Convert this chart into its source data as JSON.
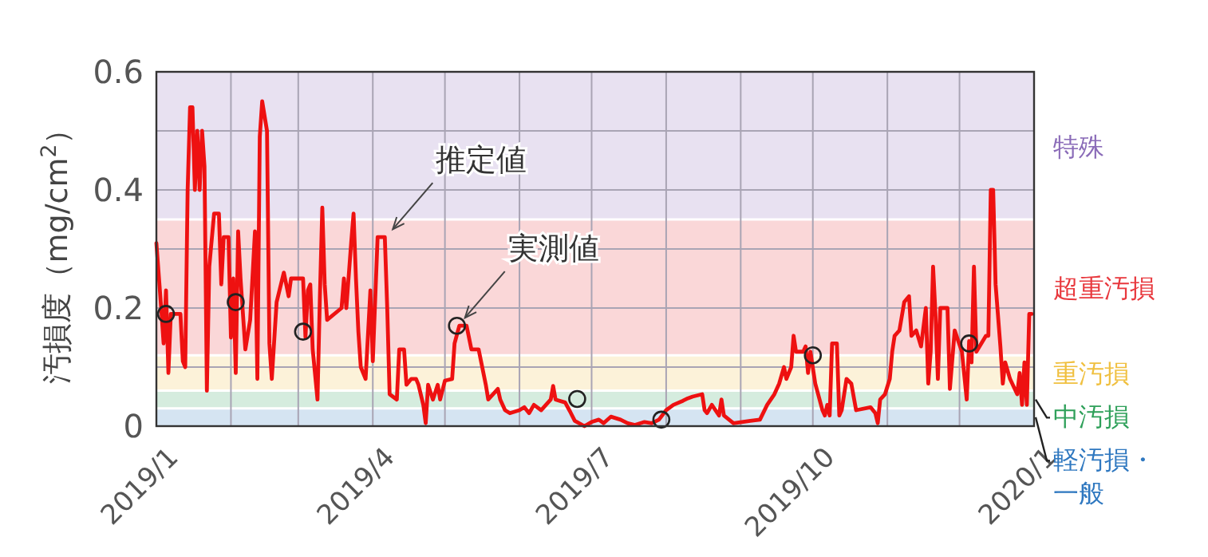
{
  "chart_data": {
    "type": "line",
    "ylabel": "汚損度（mg/cm$^{2}$）",
    "xlim": [
      "2019-01",
      "2020-01"
    ],
    "xticks": [
      {
        "value": "2019-01",
        "label": "2019/1"
      },
      {
        "value": "2019-02",
        "label": null
      },
      {
        "value": "2019-03",
        "label": null
      },
      {
        "value": "2019-04",
        "label": "2019/4"
      },
      {
        "value": "2019-05",
        "label": null
      },
      {
        "value": "2019-06",
        "label": null
      },
      {
        "value": "2019-07",
        "label": "2019/7"
      },
      {
        "value": "2019-08",
        "label": null
      },
      {
        "value": "2019-09",
        "label": null
      },
      {
        "value": "2019-10",
        "label": "2019/10"
      },
      {
        "value": "2019-11",
        "label": null
      },
      {
        "value": "2019-12",
        "label": null
      },
      {
        "value": "2020-01",
        "label": "2020/1"
      }
    ],
    "ylim": [
      0,
      0.6
    ],
    "yticks": [
      0,
      {
        "value": 0.1,
        "label": null
      },
      0.2,
      {
        "value": 0.3,
        "label": null
      },
      0.4,
      {
        "value": 0.5,
        "label": null
      },
      0.6
    ],
    "grid": true,
    "bands": [
      {
        "axis": "y",
        "from": 0.35,
        "to": 0.6,
        "label": "特殊",
        "color": "#8a6bb8"
      },
      {
        "axis": "y",
        "from": 0.12,
        "to": 0.35,
        "label": "超重汚損",
        "color": "#e8383d"
      },
      {
        "axis": "y",
        "from": 0.06,
        "to": 0.12,
        "label": "重汚損",
        "color": "#f0c040"
      },
      {
        "axis": "y",
        "from": 0.03,
        "to": 0.06,
        "label": "中汚損",
        "color": "#2fa05a"
      },
      {
        "axis": "y",
        "from": 0,
        "to": 0.03,
        "label": "軽汚損・一般",
        "color": "#2f78c0"
      }
    ],
    "annotations": [
      {
        "text": "推定値",
        "x": "2019-04-06",
        "y": 0.32
      },
      {
        "text": "実測値",
        "x": "2019-05-06",
        "y": 0.17
      }
    ],
    "series": [
      {
        "type": "line",
        "color": "#ee1111",
        "marker": "none",
        "x": [
          "2019-01-01",
          "2019-01-03",
          "2019-01-04",
          "2019-01-05",
          "2019-01-06",
          "2019-01-07",
          "2019-01-11",
          "2019-01-12",
          "2019-01-13",
          "2019-01-14",
          "2019-01-15",
          "2019-01-16",
          "2019-01-17",
          "2019-01-18",
          "2019-01-19",
          "2019-01-20",
          "2019-01-21",
          "2019-01-22",
          "2019-01-23",
          "2019-01-25",
          "2019-01-27",
          "2019-01-28",
          "2019-01-29",
          "2019-01-31",
          "2019-02-01",
          "2019-02-02",
          "2019-02-03",
          "2019-02-04",
          "2019-02-05",
          "2019-02-07",
          "2019-02-09",
          "2019-02-11",
          "2019-02-12",
          "2019-02-13",
          "2019-02-14",
          "2019-02-16",
          "2019-02-17",
          "2019-02-18",
          "2019-02-20",
          "2019-02-23",
          "2019-02-25",
          "2019-02-26",
          "2019-03-03",
          "2019-03-04",
          "2019-03-05",
          "2019-03-06",
          "2019-03-07",
          "2019-03-09",
          "2019-03-10",
          "2019-03-11",
          "2019-03-12",
          "2019-03-13",
          "2019-03-19",
          "2019-03-20",
          "2019-03-21",
          "2019-03-23",
          "2019-03-24",
          "2019-03-25",
          "2019-03-26",
          "2019-03-27",
          "2019-03-29",
          "2019-03-31",
          "2019-04-01",
          "2019-04-03",
          "2019-04-06",
          "2019-04-07",
          "2019-04-08",
          "2019-04-11",
          "2019-04-12",
          "2019-04-14",
          "2019-04-15",
          "2019-04-17",
          "2019-04-19",
          "2019-04-20",
          "2019-04-22",
          "2019-04-23",
          "2019-04-24",
          "2019-04-26",
          "2019-04-28",
          "2019-04-29",
          "2019-05-01",
          "2019-05-04",
          "2019-05-05",
          "2019-05-07",
          "2019-05-10",
          "2019-05-12",
          "2019-05-15",
          "2019-05-16",
          "2019-05-18",
          "2019-05-19",
          "2019-05-23",
          "2019-05-24",
          "2019-05-26",
          "2019-05-28",
          "2019-06-01",
          "2019-06-03",
          "2019-06-05",
          "2019-06-07",
          "2019-06-10",
          "2019-06-12",
          "2019-06-14",
          "2019-06-15",
          "2019-06-16",
          "2019-06-20",
          "2019-06-22",
          "2019-06-24",
          "2019-06-28",
          "2019-07-01",
          "2019-07-04",
          "2019-07-06",
          "2019-07-09",
          "2019-07-13",
          "2019-07-16",
          "2019-07-19",
          "2019-07-23",
          "2019-07-26",
          "2019-07-29",
          "2019-08-01",
          "2019-08-04",
          "2019-08-08",
          "2019-08-10",
          "2019-08-12",
          "2019-08-16",
          "2019-08-17",
          "2019-08-18",
          "2019-08-20",
          "2019-08-23",
          "2019-08-24",
          "2019-08-25",
          "2019-08-29",
          "2019-09-05",
          "2019-09-09",
          "2019-09-12",
          "2019-09-15",
          "2019-09-17",
          "2019-09-19",
          "2019-09-20",
          "2019-09-22",
          "2019-09-23",
          "2019-09-24",
          "2019-09-27",
          "2019-09-28",
          "2019-09-29",
          "2019-09-30",
          "2019-10-02",
          "2019-10-05",
          "2019-10-06",
          "2019-10-07",
          "2019-10-08",
          "2019-10-09",
          "2019-10-11",
          "2019-10-12",
          "2019-10-13",
          "2019-10-15",
          "2019-10-17",
          "2019-10-19",
          "2019-10-25",
          "2019-10-27",
          "2019-10-28",
          "2019-10-29",
          "2019-10-31",
          "2019-11-02",
          "2019-11-03",
          "2019-11-04",
          "2019-11-06",
          "2019-11-08",
          "2019-11-10",
          "2019-11-11",
          "2019-11-13",
          "2019-11-15",
          "2019-11-17",
          "2019-11-18",
          "2019-11-19",
          "2019-11-20",
          "2019-11-21",
          "2019-11-22",
          "2019-11-23",
          "2019-11-26",
          "2019-11-27",
          "2019-11-29",
          "2019-12-02",
          "2019-12-04",
          "2019-12-05",
          "2019-12-06",
          "2019-12-07",
          "2019-12-08",
          "2019-12-12",
          "2019-12-13",
          "2019-12-14",
          "2019-12-15",
          "2019-12-16",
          "2019-12-18",
          "2019-12-19",
          "2019-12-20",
          "2019-12-22",
          "2019-12-25",
          "2019-12-26",
          "2019-12-27",
          "2019-12-28",
          "2019-12-29",
          "2019-12-30",
          "2019-12-31"
        ],
        "values": [
          0.31,
          0.2,
          0.14,
          0.23,
          0.09,
          0.19,
          0.19,
          0.11,
          0.1,
          0.4,
          0.54,
          0.54,
          0.4,
          0.5,
          0.4,
          0.5,
          0.44,
          0.06,
          0.27,
          0.36,
          0.36,
          0.24,
          0.32,
          0.32,
          0.15,
          0.25,
          0.09,
          0.33,
          0.25,
          0.13,
          0.18,
          0.33,
          0.08,
          0.49,
          0.55,
          0.5,
          0.14,
          0.08,
          0.21,
          0.26,
          0.22,
          0.25,
          0.25,
          0.15,
          0.23,
          0.24,
          0.13,
          0.045,
          0.22,
          0.37,
          0.24,
          0.18,
          0.2,
          0.25,
          0.2,
          0.31,
          0.36,
          0.25,
          0.16,
          0.1,
          0.08,
          0.23,
          0.11,
          0.32,
          0.32,
          0.2,
          0.054,
          0.045,
          0.13,
          0.13,
          0.07,
          0.08,
          0.08,
          0.07,
          0.036,
          0.005,
          0.07,
          0.045,
          0.07,
          0.045,
          0.077,
          0.08,
          0.14,
          0.17,
          0.17,
          0.13,
          0.13,
          0.11,
          0.07,
          0.045,
          0.063,
          0.045,
          0.027,
          0.022,
          0.027,
          0.032,
          0.022,
          0.036,
          0.027,
          0.036,
          0.045,
          0.068,
          0.045,
          0.04,
          0.025,
          0.009,
          0,
          0.007,
          0.011,
          0.005,
          0.016,
          0.011,
          0.005,
          0.002,
          0.007,
          0.005,
          0.011,
          0.027,
          0.036,
          0.043,
          0.047,
          0.05,
          0.054,
          0.027,
          0.022,
          0.036,
          0.018,
          0.045,
          0.018,
          0.005,
          0.009,
          0.011,
          0.036,
          0.054,
          0.072,
          0.1,
          0.08,
          0.1,
          0.153,
          0.126,
          0.126,
          0.135,
          0.09,
          0.126,
          0.072,
          0.027,
          0.018,
          0.036,
          0.018,
          0.14,
          0.14,
          0.018,
          0.027,
          0.08,
          0.072,
          0.027,
          0.032,
          0.022,
          0.005,
          0.045,
          0.054,
          0.08,
          0.126,
          0.153,
          0.162,
          0.21,
          0.22,
          0.153,
          0.162,
          0.135,
          0.2,
          0.072,
          0.126,
          0.27,
          0.19,
          0.08,
          0.2,
          0.2,
          0.063,
          0.162,
          0.126,
          0.045,
          0.144,
          0.108,
          0.27,
          0.126,
          0.153,
          0.153,
          0.4,
          0.4,
          0.24,
          0.135,
          0.072,
          0.108,
          0.08,
          0.054,
          0.09,
          0.036,
          0.108,
          0.036,
          0.19,
          0.19
        ]
      },
      {
        "type": "scatter",
        "color": "#222222",
        "marker": "circle",
        "x": [
          "2019-01-05",
          "2019-02-03",
          "2019-03-03",
          "2019-05-06",
          "2019-06-25",
          "2019-07-30",
          "2019-10-01",
          "2019-12-05"
        ],
        "values": [
          0.19,
          0.21,
          0.16,
          0.17,
          0.046,
          0.011,
          0.12,
          0.14
        ]
      }
    ]
  }
}
